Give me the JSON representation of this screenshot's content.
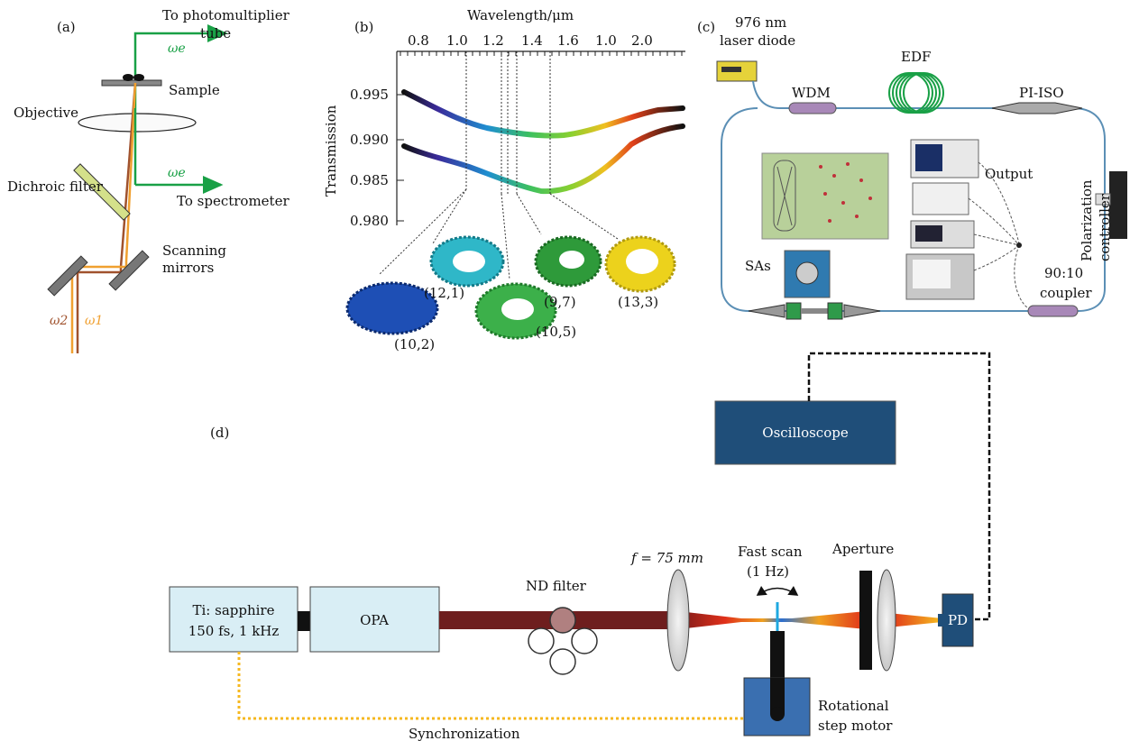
{
  "panel_a": {
    "label": "(a)",
    "to_pmt_line1": "To photomultiplier",
    "to_pmt_line2": "tube",
    "omega_e_top": "ωe",
    "sample": "Sample",
    "objective": "Objective",
    "dichroic": "Dichroic filter",
    "omega_e_mid": "ωe",
    "to_spectrometer": "To spectrometer",
    "scanning_line1": "Scanning",
    "scanning_line2": "mirrors",
    "omega2": "ω2",
    "omega1": "ω1"
  },
  "panel_b": {
    "label": "(b)",
    "xlabel": "Wavelength/μm",
    "ylabel": "Transmission",
    "top_ticks": [
      "0.8",
      "1.0",
      "1.2",
      "1.4",
      "1.6",
      "1.0",
      "2.0"
    ],
    "y_ticks": [
      "0.995",
      "0.990",
      "0.985",
      "0.980"
    ],
    "chirality": [
      "(12,1)",
      "(10,2)",
      "(10,5)",
      "(9,7)",
      "(13,3)"
    ]
  },
  "panel_c": {
    "label": "(c)",
    "laser_line1": "976 nm",
    "laser_line2": "laser diode",
    "edf": "EDF",
    "wdm": "WDM",
    "piiso": "PI-ISO",
    "output": "Output",
    "polarization_line1": "Polarization",
    "polarization_line2": "controller",
    "sas": "SAs",
    "coupler_line1": "90:10",
    "coupler_line2": "coupler"
  },
  "panel_d": {
    "label": "(d)",
    "oscilloscope": "Oscilloscope",
    "ti_line1": "Ti: sapphire",
    "ti_line2": "150 fs, 1 kHz",
    "opa": "OPA",
    "nd_filter": "ND filter",
    "focal": "f = 75 mm",
    "fastscan_line1": "Fast scan",
    "fastscan_line2": "(1 Hz)",
    "aperture": "Aperture",
    "pd": "PD",
    "rotational_line1": "Rotational",
    "rotational_line2": "step motor",
    "synchronization": "Synchronization"
  },
  "colors": {
    "green_beam": "#19a046",
    "orange_beam": "#f0a030",
    "brown_beam": "#a0522d",
    "navy_box": "#1f4e79",
    "light_box": "#d9eef5",
    "dark_red_beam": "#6e1e1e",
    "fiber": "#5b8fb5"
  }
}
